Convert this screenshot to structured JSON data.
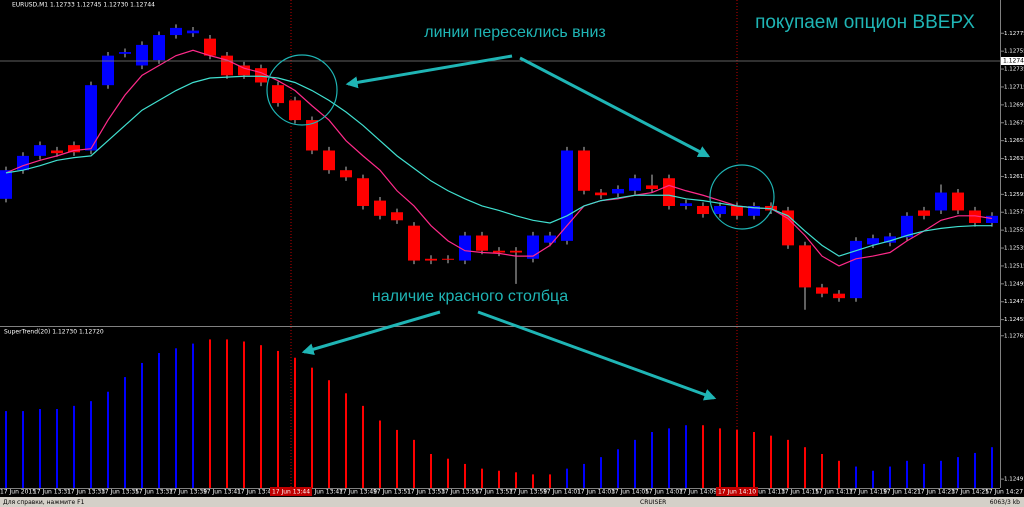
{
  "chart_data": [
    {
      "type": "candlestick",
      "title": "EURUSD,M1 1.12733 1.12745 1.12730 1.12744",
      "annotations": [
        "линии пересеклись вниз",
        "покупаем опцион ВВЕРХ"
      ],
      "up_color": "#0000ff",
      "down_color": "#ff0000",
      "wick_color": "#c0c0c0",
      "open": [
        1.1259,
        1.12622,
        1.12638,
        1.12644,
        1.1265,
        1.12644,
        1.12717,
        1.12752,
        1.12739,
        1.12745,
        1.12773,
        1.12775,
        1.12769,
        1.1275,
        1.12739,
        1.12736,
        1.12717,
        1.127,
        1.12678,
        1.12644,
        1.12622,
        1.12613,
        1.12588,
        1.12575,
        1.1256,
        1.12523,
        1.12523,
        1.12521,
        1.12549,
        1.12532,
        1.12532,
        1.12523,
        1.12541,
        1.12543,
        1.12644,
        1.12597,
        1.12596,
        1.12599,
        1.12605,
        1.12613,
        1.12582,
        1.12582,
        1.12573,
        1.12582,
        1.12571,
        1.12582,
        1.12577,
        1.12538,
        1.12491,
        1.12484,
        1.12479,
        1.12539,
        1.12541,
        1.12547,
        1.12577,
        1.12577,
        1.12597,
        1.12577,
        1.12563
      ],
      "high": [
        1.12626,
        1.12642,
        1.12654,
        1.12648,
        1.12654,
        1.12721,
        1.12754,
        1.12758,
        1.12766,
        1.12777,
        1.12785,
        1.12782,
        1.12773,
        1.12754,
        1.12743,
        1.1274,
        1.12721,
        1.12704,
        1.12682,
        1.12648,
        1.12626,
        1.12617,
        1.12592,
        1.12579,
        1.12564,
        1.12527,
        1.12527,
        1.12553,
        1.12553,
        1.12536,
        1.12536,
        1.12553,
        1.12553,
        1.12648,
        1.12648,
        1.12601,
        1.12605,
        1.12617,
        1.12617,
        1.12617,
        1.12589,
        1.12586,
        1.12586,
        1.12586,
        1.12586,
        1.12586,
        1.12581,
        1.12542,
        1.12495,
        1.12488,
        1.12547,
        1.1255,
        1.12552,
        1.12575,
        1.12581,
        1.12606,
        1.12601,
        1.12581,
        1.12575
      ],
      "low": [
        1.12586,
        1.12618,
        1.12634,
        1.12637,
        1.12638,
        1.1264,
        1.12713,
        1.12748,
        1.12735,
        1.12741,
        1.12769,
        1.12771,
        1.12746,
        1.12724,
        1.12724,
        1.12716,
        1.12693,
        1.12674,
        1.1264,
        1.12618,
        1.1261,
        1.12578,
        1.12567,
        1.12562,
        1.12517,
        1.12517,
        1.12518,
        1.12517,
        1.12528,
        1.12526,
        1.12495,
        1.12519,
        1.12537,
        1.12539,
        1.12595,
        1.1259,
        1.12592,
        1.12595,
        1.12597,
        1.12578,
        1.12578,
        1.12569,
        1.12569,
        1.12567,
        1.12567,
        1.12573,
        1.12534,
        1.12466,
        1.1248,
        1.12475,
        1.12475,
        1.12535,
        1.12537,
        1.12543,
        1.12567,
        1.12573,
        1.12573,
        1.12559,
        1.12559
      ],
      "close": [
        1.12622,
        1.12638,
        1.1265,
        1.12641,
        1.12642,
        1.12717,
        1.1275,
        1.12754,
        1.12762,
        1.12773,
        1.12781,
        1.12778,
        1.1275,
        1.12728,
        1.12728,
        1.1272,
        1.12697,
        1.12678,
        1.12644,
        1.12622,
        1.12614,
        1.12582,
        1.12571,
        1.12566,
        1.12521,
        1.12521,
        1.12522,
        1.12549,
        1.12532,
        1.1253,
        1.1253,
        1.12549,
        1.12549,
        1.12644,
        1.12599,
        1.12594,
        1.12601,
        1.12613,
        1.12601,
        1.12582,
        1.12585,
        1.12573,
        1.12582,
        1.12571,
        1.12582,
        1.12577,
        1.12538,
        1.12491,
        1.12484,
        1.12479,
        1.12543,
        1.12546,
        1.12548,
        1.12571,
        1.12571,
        1.12597,
        1.12577,
        1.12563,
        1.12571
      ],
      "lines": [
        {
          "color": "#ff2a8a",
          "values": [
            1.12619,
            1.12627,
            1.12633,
            1.12638,
            1.12644,
            1.12646,
            1.12678,
            1.12706,
            1.12728,
            1.12739,
            1.1275,
            1.12756,
            1.1275,
            1.12745,
            1.12736,
            1.12731,
            1.12722,
            1.12711,
            1.12694,
            1.12678,
            1.12655,
            1.12638,
            1.12622,
            1.12599,
            1.12582,
            1.1256,
            1.12543,
            1.12532,
            1.1253,
            1.12529,
            1.12526,
            1.12526,
            1.12538,
            1.1256,
            1.12582,
            1.12588,
            1.1259,
            1.12594,
            1.12597,
            1.12605,
            1.12599,
            1.12594,
            1.12588,
            1.12582,
            1.1258,
            1.12579,
            1.12568,
            1.12549,
            1.12526,
            1.12515,
            1.12523,
            1.12526,
            1.1253,
            1.12543,
            1.12554,
            1.12566,
            1.12571,
            1.12571,
            1.12568
          ]
        },
        {
          "color": "#40e0d0",
          "values": [
            1.12619,
            1.12622,
            1.12627,
            1.12633,
            1.12636,
            1.12638,
            1.12655,
            1.12672,
            1.12689,
            1.127,
            1.12711,
            1.1272,
            1.12725,
            1.12726,
            1.12727,
            1.12727,
            1.12725,
            1.1272,
            1.12711,
            1.127,
            1.12687,
            1.12672,
            1.12655,
            1.12638,
            1.12624,
            1.1261,
            1.12599,
            1.1259,
            1.12582,
            1.12577,
            1.12571,
            1.12566,
            1.12563,
            1.12571,
            1.12582,
            1.12588,
            1.12591,
            1.12594,
            1.12594,
            1.12594,
            1.1259,
            1.12588,
            1.12585,
            1.12582,
            1.1258,
            1.12579,
            1.12571,
            1.12554,
            1.12538,
            1.12526,
            1.12532,
            1.12538,
            1.12543,
            1.12549,
            1.12554,
            1.12557,
            1.12559,
            1.1256,
            1.1256
          ]
        }
      ],
      "current_price": 1.12744,
      "ylim": [
        1.12449,
        1.12801
      ],
      "yticks": [
        1.12455,
        1.12475,
        1.12495,
        1.12515,
        1.12535,
        1.12555,
        1.12575,
        1.12595,
        1.12615,
        1.12635,
        1.12655,
        1.12675,
        1.12695,
        1.12715,
        1.12735,
        1.12755,
        1.12775
      ]
    },
    {
      "type": "bar",
      "title": "SuperTrend(20) 1.12730 1.12720",
      "annotations": [
        "наличие красного столбца"
      ],
      "categories": [
        "17 Jun 2015",
        null,
        "17 Jun 13:31",
        null,
        "17 Jun 13:33",
        null,
        "17 Jun 13:35",
        null,
        "17 Jun 13:37",
        null,
        "17 Jun 13:39",
        null,
        "17 Jun 13:41",
        null,
        "17 Jun 13:43",
        null,
        null,
        null,
        "17 Jun 13:47",
        null,
        "17 Jun 13:49",
        null,
        "17 Jun 13:51",
        null,
        "17 Jun 13:53",
        null,
        "17 Jun 13:55",
        null,
        "17 Jun 13:57",
        null,
        "17 Jun 13:59",
        null,
        "17 Jun 14:01",
        null,
        "17 Jun 14:03",
        null,
        "17 Jun 14:05",
        null,
        "17 Jun 14:07",
        null,
        "17 Jun 14:09",
        null,
        null,
        null,
        "17 Jun 14:13",
        null,
        "17 Jun 14:15",
        null,
        "17 Jun 14:17",
        null,
        "17 Jun 14:19",
        null,
        "17 Jun 14:21",
        null,
        "17 Jun 14:23",
        null,
        "17 Jun 14:25",
        null,
        "17 Jun 14:27"
      ],
      "cursor_labels": [
        "17 Jun 13:44",
        "17 Jun 14:10"
      ],
      "values": [
        1.12621,
        1.12621,
        1.12625,
        1.12625,
        1.12631,
        1.1264,
        1.12658,
        1.12686,
        1.12713,
        1.12732,
        1.12741,
        1.1275,
        1.12758,
        1.12758,
        1.12754,
        1.12747,
        1.12736,
        1.12723,
        1.12704,
        1.1268,
        1.12655,
        1.12631,
        1.12603,
        1.12585,
        1.12566,
        1.12539,
        1.1253,
        1.1252,
        1.12511,
        1.12507,
        1.12504,
        1.125,
        1.125,
        1.12511,
        1.1252,
        1.12533,
        1.12548,
        1.12566,
        1.12581,
        1.12588,
        1.12594,
        1.12594,
        1.12588,
        1.12585,
        1.12581,
        1.12574,
        1.12566,
        1.12552,
        1.12539,
        1.12526,
        1.12515,
        1.12507,
        1.12515,
        1.12526,
        1.1252,
        1.12526,
        1.12533,
        1.12541,
        1.12552
      ],
      "colors": [
        "#0000ff",
        "#0000ff",
        "#0000ff",
        "#0000ff",
        "#0000ff",
        "#0000ff",
        "#0000ff",
        "#0000ff",
        "#0000ff",
        "#0000ff",
        "#0000ff",
        "#0000ff",
        "#ff0000",
        "#ff0000",
        "#ff0000",
        "#ff0000",
        "#ff0000",
        "#ff0000",
        "#ff0000",
        "#ff0000",
        "#ff0000",
        "#ff0000",
        "#ff0000",
        "#ff0000",
        "#ff0000",
        "#ff0000",
        "#ff0000",
        "#ff0000",
        "#ff0000",
        "#ff0000",
        "#ff0000",
        "#ff0000",
        "#ff0000",
        "#0000ff",
        "#0000ff",
        "#0000ff",
        "#0000ff",
        "#0000ff",
        "#0000ff",
        "#0000ff",
        "#0000ff",
        "#ff0000",
        "#ff0000",
        "#ff0000",
        "#ff0000",
        "#ff0000",
        "#ff0000",
        "#ff0000",
        "#ff0000",
        "#ff0000",
        "#0000ff",
        "#0000ff",
        "#0000ff",
        "#0000ff",
        "#0000ff",
        "#0000ff",
        "#0000ff",
        "#0000ff",
        "#0000ff"
      ],
      "ylim": [
        1.12474,
        1.12776
      ],
      "yticks": [
        1.12491,
        1.12765
      ]
    }
  ],
  "status_bar": {
    "help": "Для справки, нажмите F1",
    "profile": "CRUISER",
    "traffic": "6063/3 kb"
  }
}
